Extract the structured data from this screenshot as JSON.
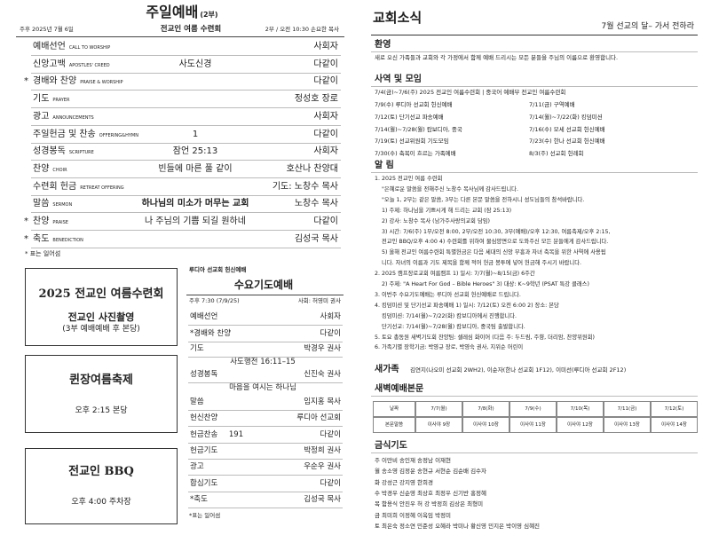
{
  "worship": {
    "title": "주일예배",
    "part": "(2부)",
    "date": "주후 2025년 7월 6일",
    "theme": "전교인 여름 수련회",
    "time": "2부 / 오전 10:30  손요한 목사",
    "rows": [
      {
        "item": "예배선언",
        "en": "CALL TO WORSHIP",
        "leader": "사회자"
      },
      {
        "item": "신앙고백",
        "en": "APOSTLES' CREED",
        "center": "사도신경",
        "leader": "다같이"
      },
      {
        "star": "*",
        "item": "경배와 찬양",
        "en": "PRAISE & WORSHIP",
        "leader": "다같이"
      },
      {
        "item": "기도",
        "en": "PRAYER",
        "leader": "정성호 장로"
      },
      {
        "item": "광고",
        "en": "ANNOUNCEMENTS",
        "leader": "사회자"
      },
      {
        "item": "주일헌금 및 찬송",
        "en": "OFFERING&HYMN",
        "center": "1",
        "leader": "다같이"
      },
      {
        "item": "성경봉독",
        "en": "SCRIPTURE",
        "center": "잠언 25:13",
        "leader": "사회자"
      },
      {
        "item": "찬양",
        "en": "CHOIR",
        "center": "빈들에 마른 풀 같이",
        "leader": "호산나 찬양대"
      },
      {
        "item": "수련회 헌금",
        "en": "RETREAT OFFERING",
        "leader": "기도: 노창수 목사"
      },
      {
        "item": "말씀",
        "en": "SERMON",
        "center": "하나님의 미소가 머무는 교회",
        "leader": "노창수 목사"
      },
      {
        "star": "*",
        "item": "찬양",
        "en": "PRAISE",
        "center": "나 주님의 기쁨 되길 원하네",
        "leader": "다같이"
      },
      {
        "star": "*",
        "item": "축도",
        "en": "BENEDICTION",
        "leader": "김성국 목사"
      }
    ],
    "note": "* 표는 일어섬"
  },
  "boxes": [
    {
      "title": "2025 전교인 여름수련회",
      "lines": [
        "전교인 사진촬영",
        "(3부 예배예배 후 본당)"
      ]
    },
    {
      "title": "퀸장여름축제",
      "lines": [
        "오후 2:15 본당"
      ]
    },
    {
      "title": "전교인 BBQ",
      "lines": [
        "오후 4:00 주차장"
      ]
    }
  ],
  "wednesday": {
    "label": "루디아 선교회 헌신예배",
    "title": "수요기도예배",
    "time": "주후 7:30 (7/9/25)",
    "host": "사회: 허영미 권사",
    "rows": [
      {
        "item": "예배선언",
        "leader": "사회자"
      },
      {
        "item": "*경배와 찬양",
        "leader": "다같이"
      },
      {
        "item": "기도",
        "leader": "박경우 권사"
      },
      {
        "center": "사도행전 16:11–15"
      },
      {
        "item": "성경봉독",
        "leader": "신진숙 권사"
      },
      {
        "center": "마음을 여시는 하나님"
      },
      {
        "item": "말씀",
        "leader": "임지홍 목사"
      },
      {
        "item": "헌신찬양",
        "leader": "루디아 선교회"
      },
      {
        "item": "헌금찬송",
        "center": "191",
        "leader": "다같이"
      },
      {
        "item": "헌금기도",
        "leader": "박정희 권사"
      },
      {
        "item": "광고",
        "leader": "우순우 권사"
      },
      {
        "item": "합심기도",
        "leader": "다같이"
      },
      {
        "item": "*축도",
        "leader": "김성국 목사"
      }
    ],
    "note": "*표는 일어섬"
  },
  "news": {
    "title": "교회소식",
    "subtitle": "7월  선교의 달– 가서 전하라",
    "welcome": {
      "heading": "환영",
      "text": "새로 오신 가족들과 교회와 각 가정에서 함께 예배 드리시는 모든 분들을 주님의 이름으로 환영합니다."
    },
    "ministry": {
      "heading": "사역 및 모임",
      "first": "7/4(금)~7/6(주) 2025 전교인 여름수련회 | 중국어 예배부 전교인 여름수련회",
      "pairs": [
        [
          "7/9(수) 루디아 선교회 헌신예배",
          "7/11(금) 구역예배"
        ],
        [
          "7/12(토) 단기선교 파송예배",
          "7/14(월)~7/22(화) 킹덤미션"
        ],
        [
          "7/14(월)~7/28(월) 캄보디아, 중국",
          "7/16(수) 모세 선교회 헌신예배"
        ],
        [
          "7/19(토) 선교위원회 기도모임",
          "7/23(수) 한나 선교회 헌신예배"
        ],
        [
          "7/30(수) 축복이 흐르는 가족예배",
          "8/3(주) 선교회 헌례회"
        ]
      ]
    },
    "notices": {
      "heading": "알 림",
      "lines": [
        "1. 2025 전교인 여름 수련회",
        "\"은혜로운 말씀을 전해주신 노창수 목사님께 감사드립니다.",
        "\"오늘 1, 2부는 같은 말씀, 3부는 다른 본문 말씀을 전하시니 성도님들의 참석바랍니다.",
        "1) 주제: 하나님을 기쁘시게 해 드리는 교회 (잠 25:13)",
        "2) 강사: 노창수 목사 (남가주사랑의교회 담임)",
        "3) 시간: 7/6(주) 1부/오전 8:00, 2부/오전 10:30, 3부(예배)/오후 12:30, 여름축제/오후 2:15,",
        "전교인 BBQ/오후 4:00   4) 수련회를 위하여 물심양면으로 도와주신 모든 분들에게 감사드립니다.",
        "5) 올해 전교인 여름수련회 특별헌금은 다음 세대의 신앙 부흥과 자녀 축복을 위한 사역에 사용됩",
        "니다. 자녀의 이름과 기도 제목을 함께 적어 헌금 봉투에 넣어 헌금해 주시기 바랍니다.",
        "2. 2025 캠프장로교회 여름캠프 1) 일시: 7/7(월)~8/15(금) 6주간",
        "2) 주제: \"A Heart For God – Bible Heroes\"     3) 대상: K~9학년 (PSAT 특강 클래스)",
        "3. 이번주 수요기도예배는 루디아 선교회 헌신예배로 드립니다.",
        "4. 킹덤미션 및 단기선교 파송예배 1) 일시: 7/12(토) 오전 6:00     2) 장소: 본당",
        "킹덤미션: 7/14(월)~7/22(화) 캄보디아에서 진행합니다.",
        "단기선교: 7/14(월)~7/28(월) 캄보디아, 중국팀 출발합니다.",
        "5. 토요 총동원 새벽기도회 찬양팀: 셀레심 화이어 (다음 주: 두드림, 주향, 더리암, 찬양위원회)",
        "6. 가족기별 장학기금: 박영규 장로, 박영숙 권사, 지위순 어린이"
      ]
    },
    "newcomers": {
      "heading": "새가족",
      "text": "김연지(나오미 선교회 2WH2), 이순자(한나 선교회 1F12), 이미선(루디아 선교회 2F12)"
    },
    "dawn": {
      "heading": "새벽예배본문",
      "table": [
        [
          "날짜",
          "7/7(월)",
          "7/8(화)",
          "7/9(수)",
          "7/10(목)",
          "7/11(금)",
          "7/12(토)"
        ],
        [
          "본문말씀",
          "이사야 9장",
          "이사야 10장",
          "이사야 11장",
          "이사야 12장",
          "이사야 13장",
          "이사야 14장"
        ]
      ]
    },
    "fasting": {
      "heading": "금식기도",
      "lines": [
        "주 이만비 송인재 송정남 이재현",
        "월 송소영 김정운 송현규 서현순 김순배 김수자",
        "화 강성근 강지영 한희경",
        "수 박경우 신순영 최상호 최정우 신기반 홍정혜",
        "목 함용식 안진우 허 강 박정희 김상은 최형미",
        "금 최미희 이정혜 이옥임 박정미",
        "토 최은숙 정소연 민준성 오혜라 박미나 황신영 민지은 박이영 심혜진"
      ]
    }
  }
}
